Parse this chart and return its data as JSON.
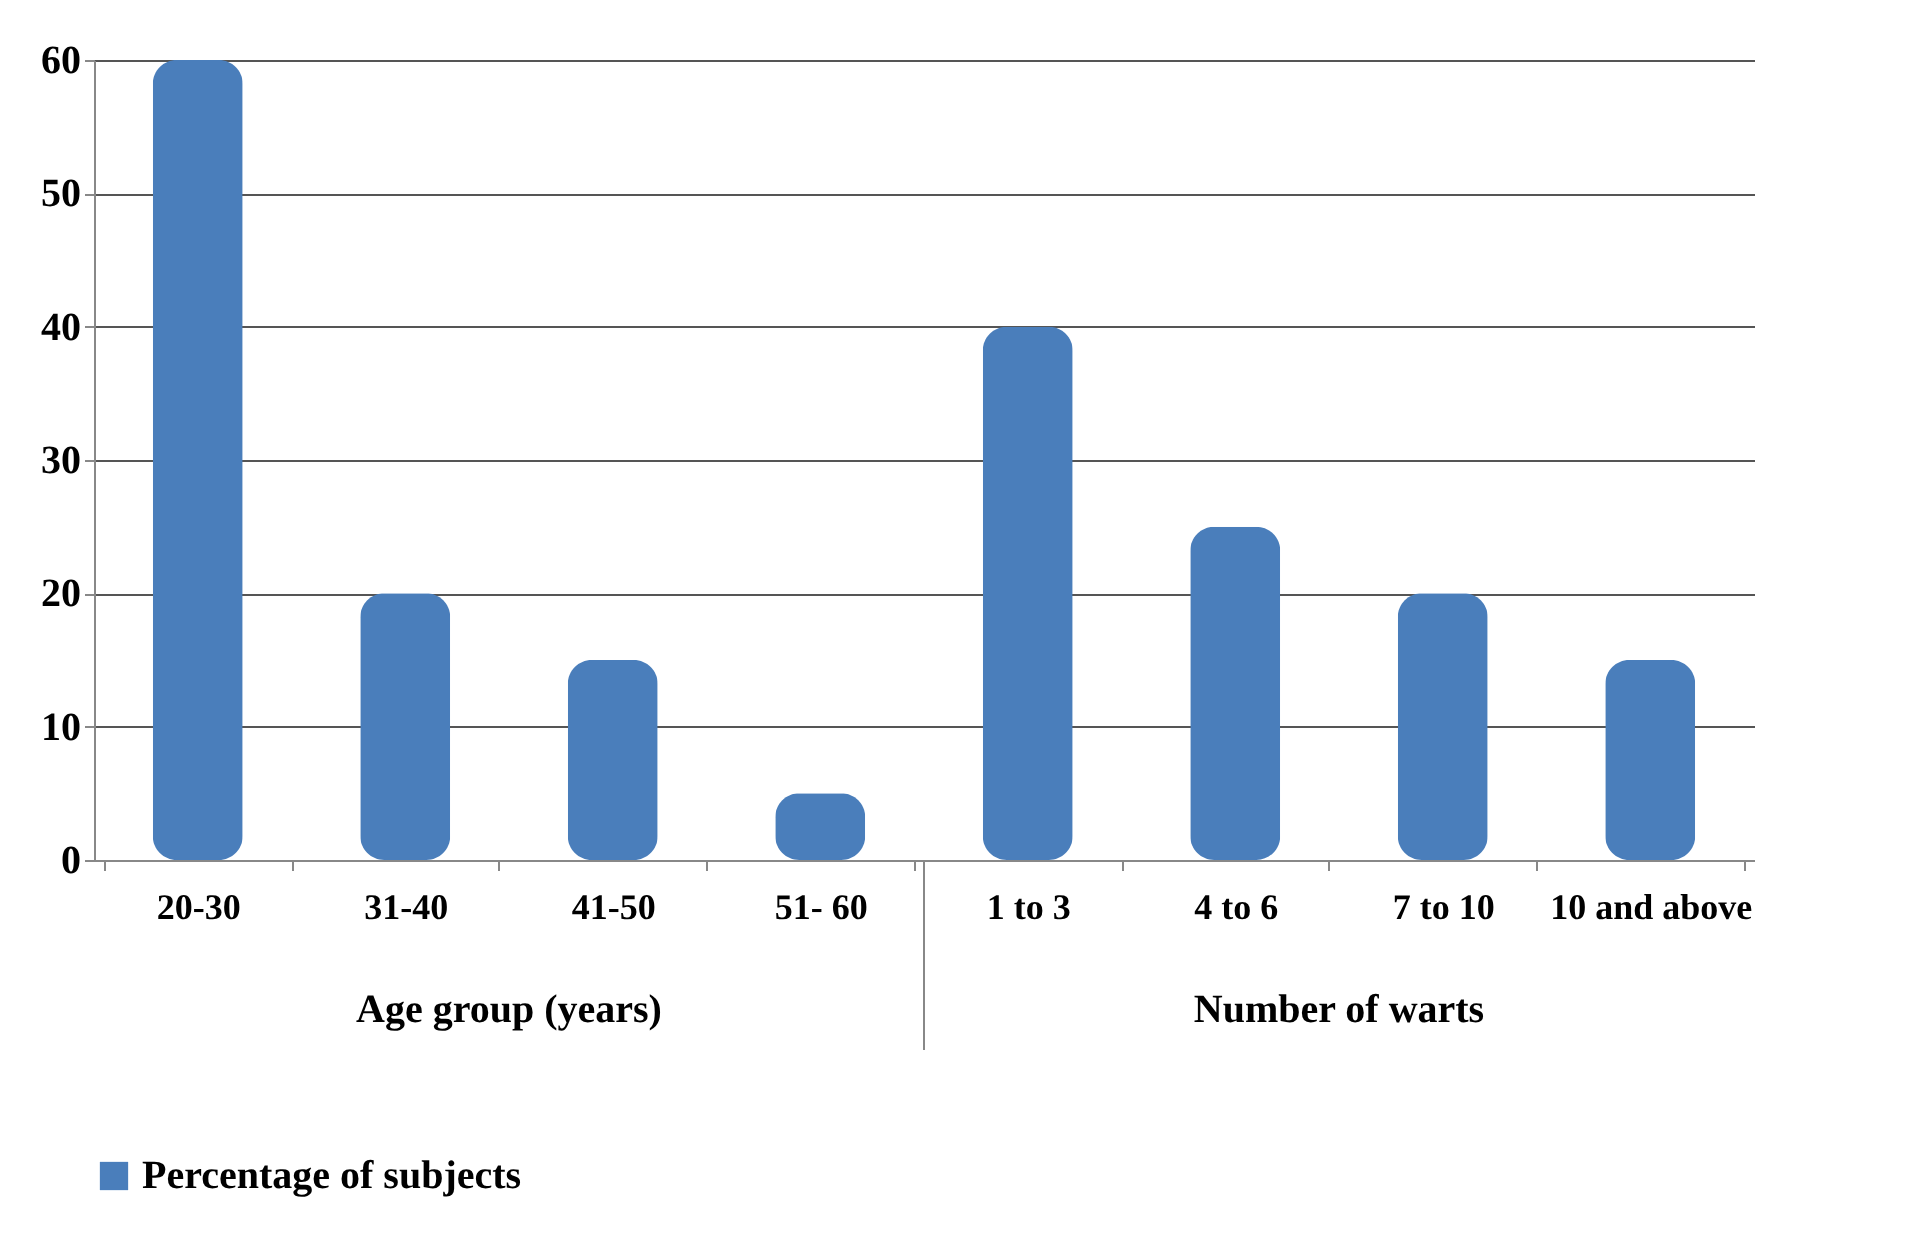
{
  "chart_data": {
    "type": "bar",
    "categories": [
      "20-30",
      "31-40",
      "41-50",
      "51- 60",
      "1 to 3",
      "4 to 6",
      "7 to 10",
      "10 and above"
    ],
    "series": [
      {
        "name": "Percentage of subjects",
        "color": "#4a7ebb",
        "values": [
          60,
          20,
          15,
          5,
          40,
          25,
          20,
          15
        ]
      }
    ],
    "ylim": [
      0,
      60
    ],
    "yticks": [
      0,
      10,
      20,
      30,
      40,
      50,
      60
    ],
    "grid": "y",
    "legend": "bottom",
    "annotations": [
      "Age group (years)",
      "Number of warts"
    ]
  }
}
